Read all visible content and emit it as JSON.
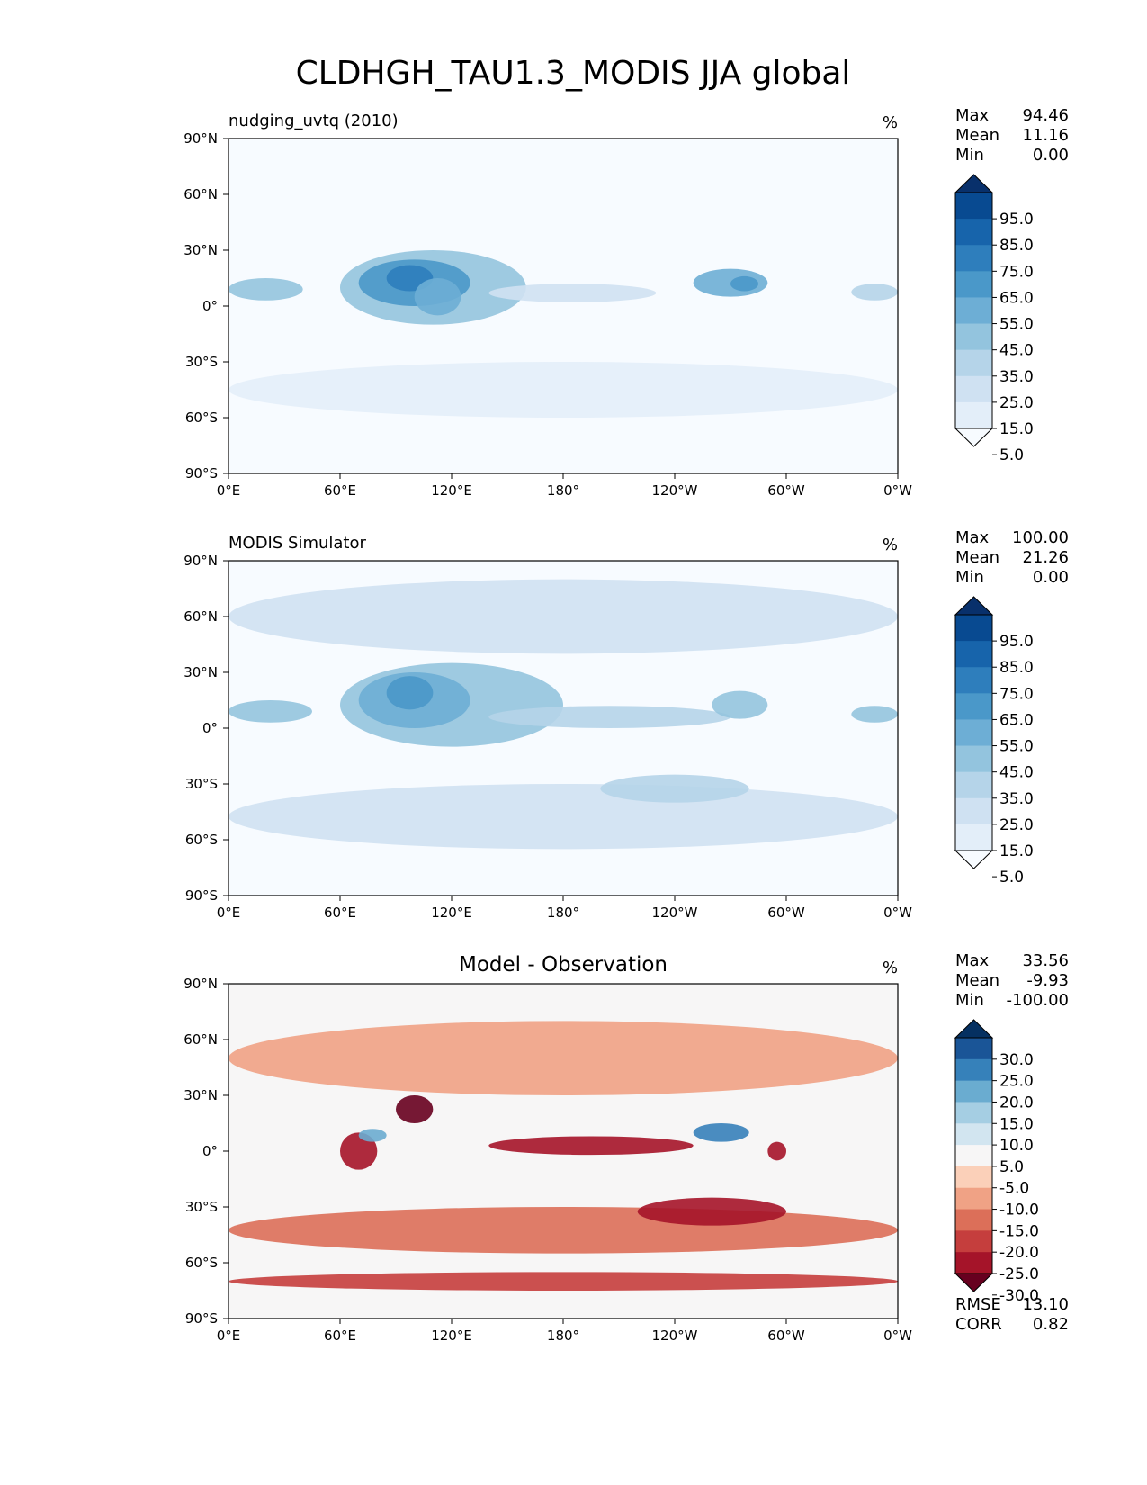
{
  "figure": {
    "title": "CLDHGH_TAU1.3_MODIS JJA global"
  },
  "chart_data": [
    {
      "type": "heatmap",
      "panel": "test",
      "left_title": "nudging_uvtq (2010)",
      "center_title": "",
      "units": "%",
      "stats": [
        {
          "label": "Max",
          "value": "94.46"
        },
        {
          "label": "Mean",
          "value": "11.16"
        },
        {
          "label": "Min",
          "value": "0.00"
        }
      ],
      "x_ticks": [
        "0°E",
        "60°E",
        "120°E",
        "180°",
        "120°W",
        "60°W",
        "0°W"
      ],
      "y_ticks": [
        "90°N",
        "60°N",
        "30°N",
        "0°",
        "30°S",
        "60°S",
        "90°S"
      ],
      "xlim": [
        0,
        360
      ],
      "ylim": [
        -90,
        90
      ],
      "colorbar": {
        "colors": [
          "#f7fbff",
          "#e3eef9",
          "#cfe1f2",
          "#b5d4e9",
          "#93c4de",
          "#6daed5",
          "#4a98c9",
          "#2e7ebc",
          "#1764ab",
          "#084a91",
          "#08306b"
        ],
        "labels": [
          "95.0",
          "85.0",
          "75.0",
          "65.0",
          "55.0",
          "45.0",
          "35.0",
          "25.0",
          "15.0",
          "5.0"
        ]
      },
      "regions": [
        {
          "lon": [
            60,
            160
          ],
          "lat": [
            -10,
            30
          ],
          "level": 4
        },
        {
          "lon": [
            70,
            130
          ],
          "lat": [
            0,
            25
          ],
          "level": 6
        },
        {
          "lon": [
            85,
            110
          ],
          "lat": [
            8,
            22
          ],
          "level": 7
        },
        {
          "lon": [
            100,
            125
          ],
          "lat": [
            -5,
            15
          ],
          "level": 5
        },
        {
          "lon": [
            0,
            40
          ],
          "lat": [
            3,
            15
          ],
          "level": 4
        },
        {
          "lon": [
            250,
            290
          ],
          "lat": [
            5,
            20
          ],
          "level": 5
        },
        {
          "lon": [
            270,
            285
          ],
          "lat": [
            8,
            16
          ],
          "level": 6
        },
        {
          "lon": [
            335,
            360
          ],
          "lat": [
            3,
            12
          ],
          "level": 3
        },
        {
          "lon": [
            140,
            230
          ],
          "lat": [
            2,
            12
          ],
          "level": 2
        },
        {
          "lon": [
            0,
            360
          ],
          "lat": [
            -60,
            -30
          ],
          "level": 1
        }
      ],
      "stats_extra": []
    },
    {
      "type": "heatmap",
      "panel": "reference",
      "left_title": "MODIS Simulator",
      "center_title": "",
      "units": "%",
      "stats": [
        {
          "label": "Max",
          "value": "100.00"
        },
        {
          "label": "Mean",
          "value": "21.26"
        },
        {
          "label": "Min",
          "value": "0.00"
        }
      ],
      "x_ticks": [
        "0°E",
        "60°E",
        "120°E",
        "180°",
        "120°W",
        "60°W",
        "0°W"
      ],
      "y_ticks": [
        "90°N",
        "60°N",
        "30°N",
        "0°",
        "30°S",
        "60°S",
        "90°S"
      ],
      "xlim": [
        0,
        360
      ],
      "ylim": [
        -90,
        90
      ],
      "colorbar": {
        "colors": [
          "#f7fbff",
          "#e3eef9",
          "#cfe1f2",
          "#b5d4e9",
          "#93c4de",
          "#6daed5",
          "#4a98c9",
          "#2e7ebc",
          "#1764ab",
          "#084a91",
          "#08306b"
        ],
        "labels": [
          "95.0",
          "85.0",
          "75.0",
          "65.0",
          "55.0",
          "45.0",
          "35.0",
          "25.0",
          "15.0",
          "5.0"
        ]
      },
      "regions": [
        {
          "lon": [
            0,
            360
          ],
          "lat": [
            -65,
            -30
          ],
          "level": 2
        },
        {
          "lon": [
            0,
            360
          ],
          "lat": [
            40,
            80
          ],
          "level": 2
        },
        {
          "lon": [
            60,
            180
          ],
          "lat": [
            -10,
            35
          ],
          "level": 4
        },
        {
          "lon": [
            70,
            130
          ],
          "lat": [
            0,
            30
          ],
          "level": 5
        },
        {
          "lon": [
            85,
            110
          ],
          "lat": [
            10,
            28
          ],
          "level": 6
        },
        {
          "lon": [
            140,
            270
          ],
          "lat": [
            0,
            12
          ],
          "level": 3
        },
        {
          "lon": [
            0,
            45
          ],
          "lat": [
            3,
            15
          ],
          "level": 4
        },
        {
          "lon": [
            260,
            290
          ],
          "lat": [
            5,
            20
          ],
          "level": 4
        },
        {
          "lon": [
            335,
            360
          ],
          "lat": [
            3,
            12
          ],
          "level": 4
        },
        {
          "lon": [
            200,
            280
          ],
          "lat": [
            -40,
            -25
          ],
          "level": 3
        }
      ],
      "stats_extra": []
    },
    {
      "type": "heatmap",
      "panel": "difference",
      "left_title": "",
      "center_title": "Model - Observation",
      "units": "%",
      "stats": [
        {
          "label": "Max",
          "value": "33.56"
        },
        {
          "label": "Mean",
          "value": "-9.93"
        },
        {
          "label": "Min",
          "value": "-100.00"
        }
      ],
      "x_ticks": [
        "0°E",
        "60°E",
        "120°E",
        "180°",
        "120°W",
        "60°W",
        "0°W"
      ],
      "y_ticks": [
        "90°N",
        "60°N",
        "30°N",
        "0°",
        "30°S",
        "60°S",
        "90°S"
      ],
      "xlim": [
        0,
        360
      ],
      "ylim": [
        -90,
        90
      ],
      "colorbar": {
        "colors": [
          "#67001f",
          "#a51429",
          "#c53e3d",
          "#dc6f59",
          "#f0a285",
          "#fbd0b9",
          "#f7f6f6",
          "#d2e5f0",
          "#a5cee3",
          "#6aacd0",
          "#3681ba",
          "#1a5597",
          "#053061"
        ],
        "labels": [
          "30.0",
          "25.0",
          "20.0",
          "15.0",
          "10.0",
          "5.0",
          "-5.0",
          "-10.0",
          "-15.0",
          "-20.0",
          "-25.0",
          "-30.0"
        ]
      },
      "regions": [
        {
          "lon": [
            0,
            360
          ],
          "lat": [
            -55,
            -30
          ],
          "level": 3
        },
        {
          "lon": [
            0,
            360
          ],
          "lat": [
            30,
            70
          ],
          "level": 4
        },
        {
          "lon": [
            140,
            250
          ],
          "lat": [
            -2,
            8
          ],
          "level": 1
        },
        {
          "lon": [
            220,
            300
          ],
          "lat": [
            -40,
            -25
          ],
          "level": 1
        },
        {
          "lon": [
            60,
            80
          ],
          "lat": [
            -10,
            10
          ],
          "level": 1
        },
        {
          "lon": [
            90,
            110
          ],
          "lat": [
            15,
            30
          ],
          "level": 0
        },
        {
          "lon": [
            250,
            280
          ],
          "lat": [
            5,
            15
          ],
          "level": 10
        },
        {
          "lon": [
            290,
            300
          ],
          "lat": [
            -5,
            5
          ],
          "level": 1
        },
        {
          "lon": [
            70,
            85
          ],
          "lat": [
            5,
            12
          ],
          "level": 9
        },
        {
          "lon": [
            0,
            360
          ],
          "lat": [
            -75,
            -65
          ],
          "level": 2
        }
      ],
      "stats_extra": [
        {
          "label": "RMSE",
          "value": "13.10"
        },
        {
          "label": "CORR",
          "value": "0.82"
        }
      ]
    }
  ]
}
